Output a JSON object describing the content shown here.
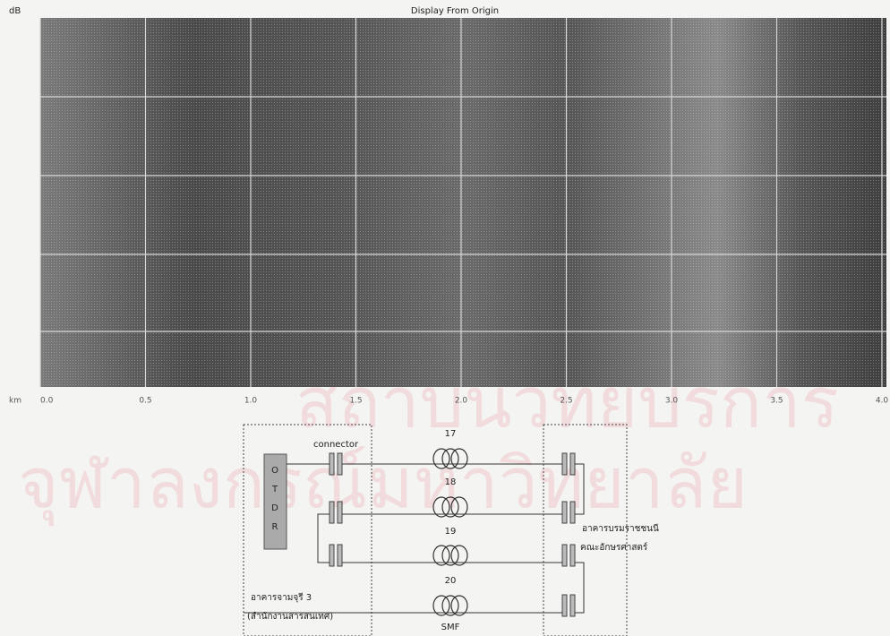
{
  "trace": {
    "title": "Display From Origin",
    "y_unit": "dB",
    "x_unit": "km",
    "x_ticks": [
      "0.0",
      "0.5",
      "1.0",
      "1.5",
      "2.0",
      "2.5",
      "3.0",
      "3.5",
      "4.0"
    ]
  },
  "watermark": {
    "top": "สถาบันวิทยบริการ",
    "bottom": "จุฬาลงกรณ์มหาวิทยาลัย"
  },
  "diagram": {
    "otdr": [
      "O",
      "T",
      "D",
      "R"
    ],
    "connector": "connector",
    "fibers": [
      "17",
      "18",
      "19",
      "20"
    ],
    "fiber_type": "SMF",
    "left_building": [
      "อาคารจามจุรี 3",
      "(สำนักงานสารสนเทศ)"
    ],
    "right_building": [
      "อาคารบรมราชชนนี",
      "คณะอักษรศาสตร์"
    ]
  }
}
